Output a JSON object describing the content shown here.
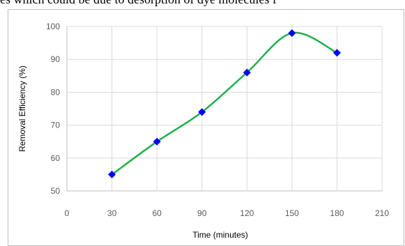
{
  "page": {
    "top_text": "es which could be due to desorption of dye molecules f"
  },
  "chart_data": {
    "type": "line",
    "title": "",
    "xlabel": "Time (minutes)",
    "ylabel": "Removal Efficiency (%)",
    "xlim": [
      0,
      210
    ],
    "ylim": [
      50,
      100
    ],
    "x_ticks": [
      0,
      30,
      60,
      90,
      120,
      150,
      180,
      210
    ],
    "y_ticks": [
      50,
      60,
      70,
      80,
      90,
      100
    ],
    "grid": true,
    "legend": "none",
    "series": [
      {
        "x": [
          30,
          60,
          90,
          120,
          150,
          180
        ],
        "values": [
          55,
          65,
          74,
          86,
          98,
          92
        ],
        "line_color": "#1fb04a",
        "marker_color": "#0000ff",
        "marker": "diamond",
        "smooth": true
      }
    ]
  }
}
